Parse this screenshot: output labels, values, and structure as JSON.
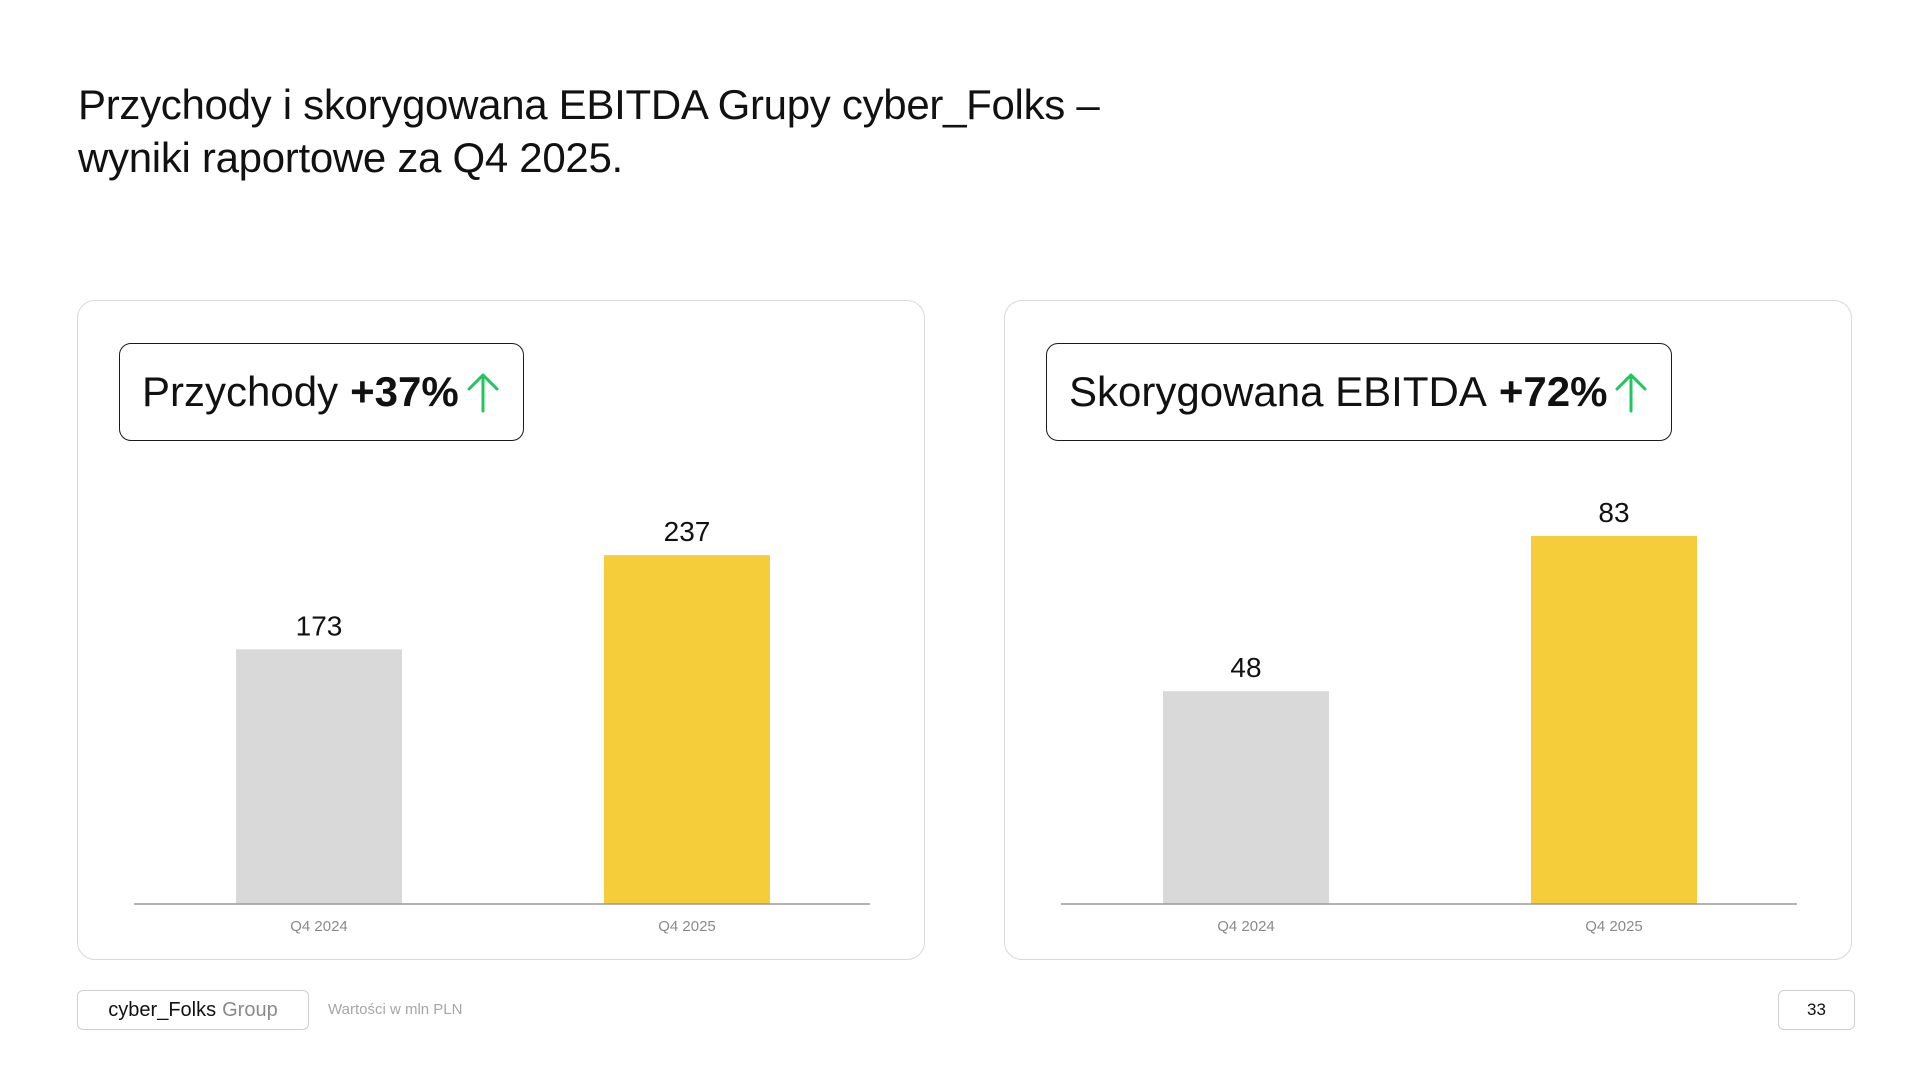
{
  "title": {
    "line1": "Przychody i skorygowana EBITDA Grupy cyber_Folks –",
    "line2": "wyniki raportowe za Q4 2025."
  },
  "colors": {
    "prior": "#d9d9d9",
    "current": "#f5cc3a",
    "up_arrow": "#22c55e",
    "axis": "#9a9a9a"
  },
  "panels": [
    {
      "kpi_label": "Przychody",
      "kpi_change": "+37%",
      "kpi_icon": "arrow-up-icon"
    },
    {
      "kpi_label": "Skorygowana EBITDA",
      "kpi_change": "+72%",
      "kpi_icon": "arrow-up-icon"
    }
  ],
  "chart_data": [
    {
      "type": "bar",
      "title": "Przychody",
      "categories": [
        "Q4 2024",
        "Q4 2025"
      ],
      "values": [
        173,
        237
      ],
      "data_labels": [
        "173",
        "237"
      ],
      "ylim": [
        0,
        250
      ],
      "grid": false
    },
    {
      "type": "bar",
      "title": "Skorygowana EBITDA",
      "categories": [
        "Q4 2024",
        "Q4 2025"
      ],
      "values": [
        48,
        83
      ],
      "data_labels": [
        "48",
        "83"
      ],
      "ylim": [
        0,
        83
      ],
      "grid": false
    }
  ],
  "footer": {
    "brand_main": "cyber_Folks",
    "brand_suffix": "Group",
    "note": "Wartości w mln PLN",
    "page_number": "33"
  }
}
